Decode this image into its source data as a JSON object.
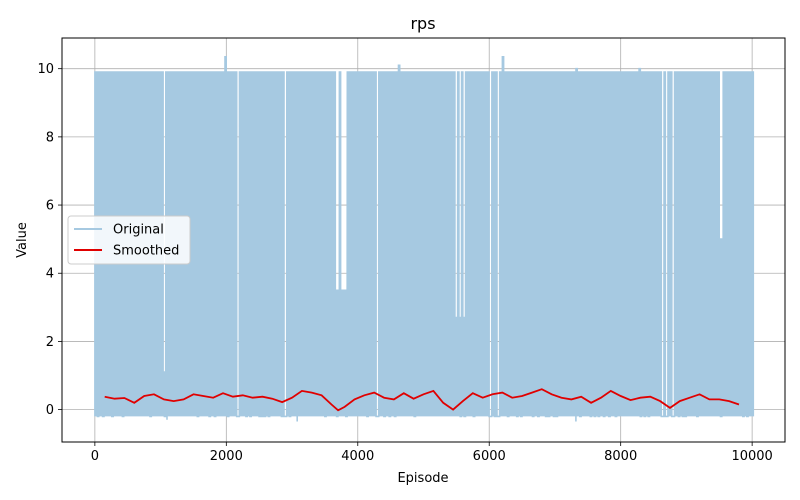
{
  "chart_data": {
    "type": "line",
    "title": "rps",
    "xlabel": "Episode",
    "ylabel": "Value",
    "xlim": [
      -500,
      10500
    ],
    "ylim": [
      -0.95,
      10.9
    ],
    "xticks": [
      0,
      2000,
      4000,
      6000,
      8000,
      10000
    ],
    "yticks": [
      0,
      2,
      4,
      6,
      8,
      10
    ],
    "grid": true,
    "legend_position": "center-left",
    "series": [
      {
        "name": "Original",
        "color": "#a6c9e1",
        "description_hint": "dense episode series oscillating between approx -0.2 and 9.9",
        "low_value": -0.2,
        "high_value": 9.9,
        "peaks": [
          [
            1980,
            10.35
          ],
          [
            2540,
            10.0
          ],
          [
            4620,
            10.1
          ],
          [
            6200,
            10.35
          ],
          [
            7320,
            10.0
          ],
          [
            8280,
            10.0
          ]
        ],
        "dips": [
          [
            3060,
            -0.35
          ],
          [
            7300,
            -0.35
          ],
          [
            1080,
            -0.3
          ]
        ]
      },
      {
        "name": "Smoothed",
        "color": "#e00000",
        "x": [
          150,
          300,
          450,
          600,
          750,
          900,
          1050,
          1200,
          1350,
          1500,
          1650,
          1800,
          1950,
          2100,
          2250,
          2400,
          2550,
          2700,
          2850,
          3000,
          3150,
          3300,
          3450,
          3600,
          3700,
          3800,
          3950,
          4100,
          4250,
          4400,
          4550,
          4700,
          4850,
          5000,
          5150,
          5300,
          5450,
          5600,
          5750,
          5900,
          6050,
          6200,
          6350,
          6500,
          6650,
          6800,
          6950,
          7100,
          7250,
          7400,
          7550,
          7700,
          7850,
          8000,
          8150,
          8300,
          8450,
          8600,
          8750,
          8900,
          9050,
          9200,
          9350,
          9500,
          9650,
          9800
        ],
        "values": [
          0.38,
          0.32,
          0.34,
          0.2,
          0.4,
          0.45,
          0.3,
          0.25,
          0.3,
          0.45,
          0.4,
          0.35,
          0.48,
          0.38,
          0.42,
          0.35,
          0.38,
          0.32,
          0.22,
          0.35,
          0.55,
          0.5,
          0.42,
          0.15,
          -0.02,
          0.08,
          0.3,
          0.42,
          0.5,
          0.35,
          0.3,
          0.48,
          0.32,
          0.45,
          0.55,
          0.2,
          0.0,
          0.25,
          0.48,
          0.35,
          0.45,
          0.5,
          0.35,
          0.4,
          0.5,
          0.6,
          0.45,
          0.35,
          0.3,
          0.38,
          0.2,
          0.35,
          0.55,
          0.4,
          0.28,
          0.35,
          0.38,
          0.25,
          0.05,
          0.25,
          0.35,
          0.45,
          0.3,
          0.3,
          0.25,
          0.15
        ]
      }
    ]
  }
}
